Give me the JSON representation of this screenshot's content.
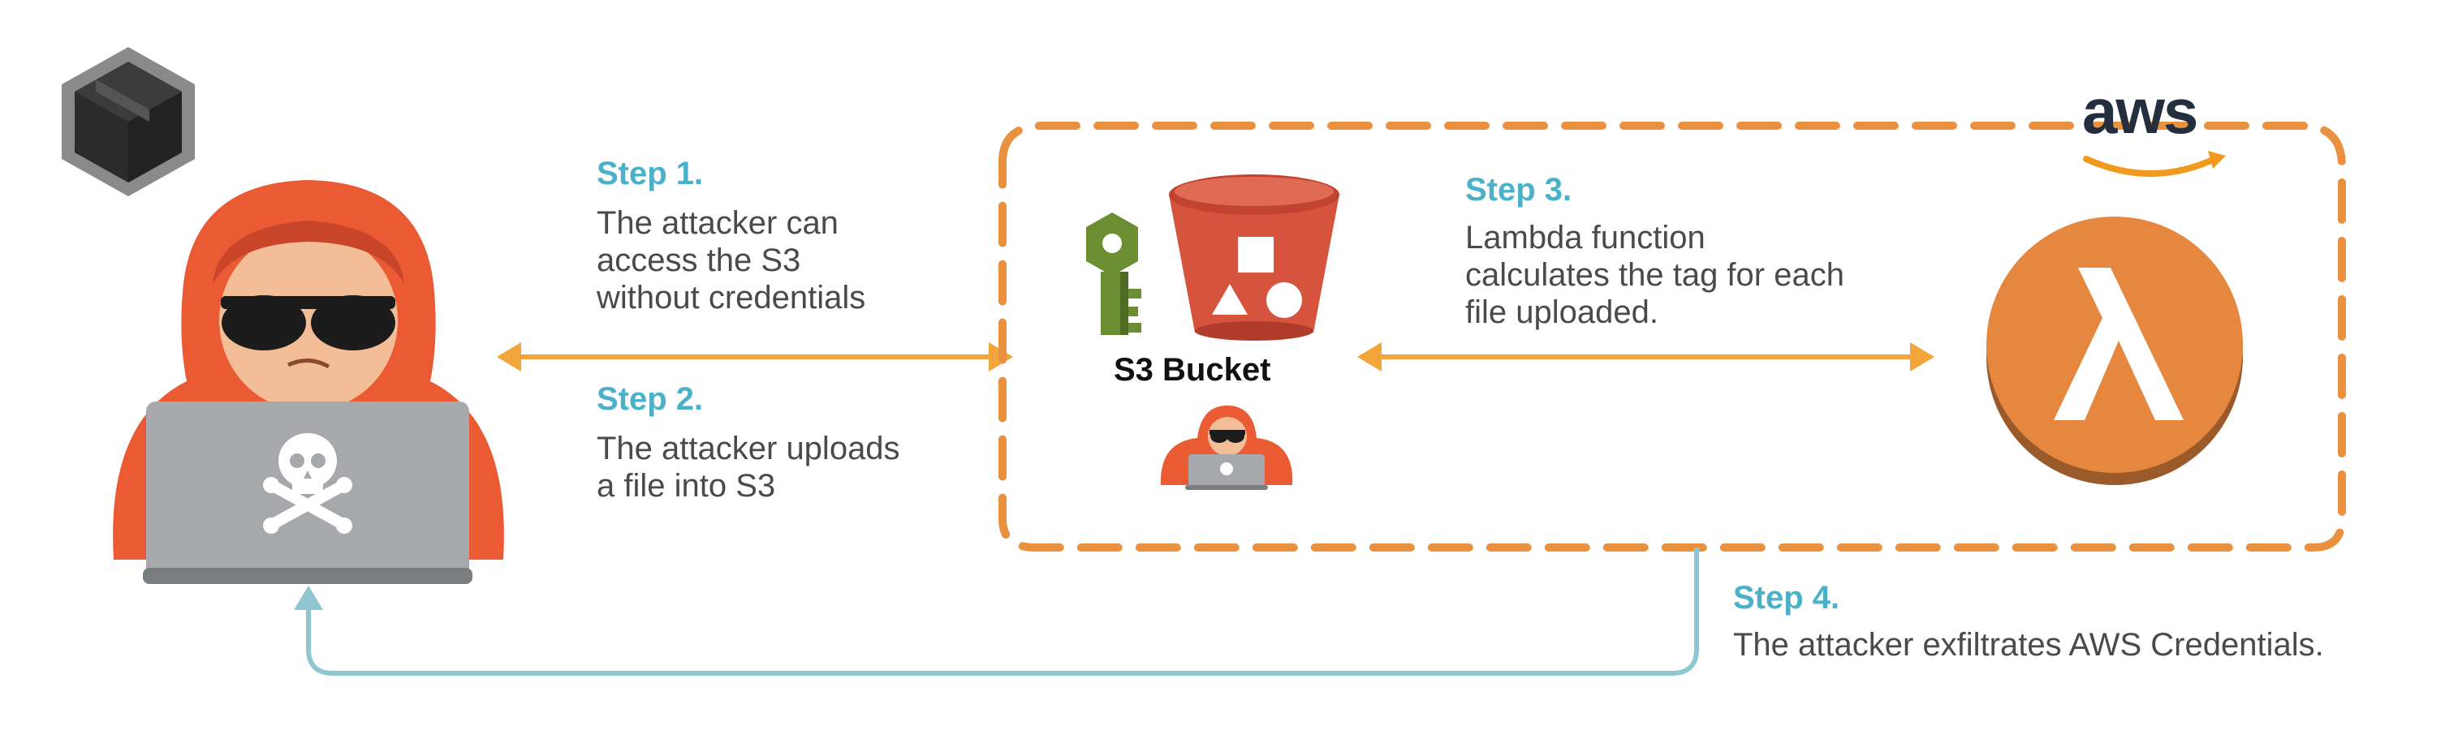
{
  "diagram": {
    "steps": [
      {
        "title": "Step 1.",
        "lines": [
          "The attacker can",
          "access the S3",
          "without credentials"
        ]
      },
      {
        "title": "Step 2.",
        "lines": [
          "The attacker uploads",
          "a file into S3"
        ]
      },
      {
        "title": "Step 3.",
        "lines": [
          "Lambda function",
          "calculates the tag for each",
          "file uploaded."
        ]
      },
      {
        "title": "Step 4.",
        "lines": [
          "The attacker exfiltrates AWS Credentials."
        ]
      }
    ],
    "bucket_label": "S3 Bucket",
    "aws_logo": "aws",
    "colors": {
      "step_title": "#4ab1c9",
      "body_text": "#4a4a4a",
      "arrow": "#f1a53a",
      "dashed_border": "#e9913f",
      "return_arrow": "#8fc6d0",
      "hoodie": "#ea5a33",
      "laptop": "#a6a8ab",
      "bucket": "#d6533e",
      "lambda": "#e6873f",
      "key": "#6b8e32"
    },
    "icons": [
      "package-icon",
      "hacker-icon",
      "skull-icon",
      "key-icon",
      "s3-bucket-icon",
      "lambda-icon",
      "aws-logo"
    ]
  }
}
